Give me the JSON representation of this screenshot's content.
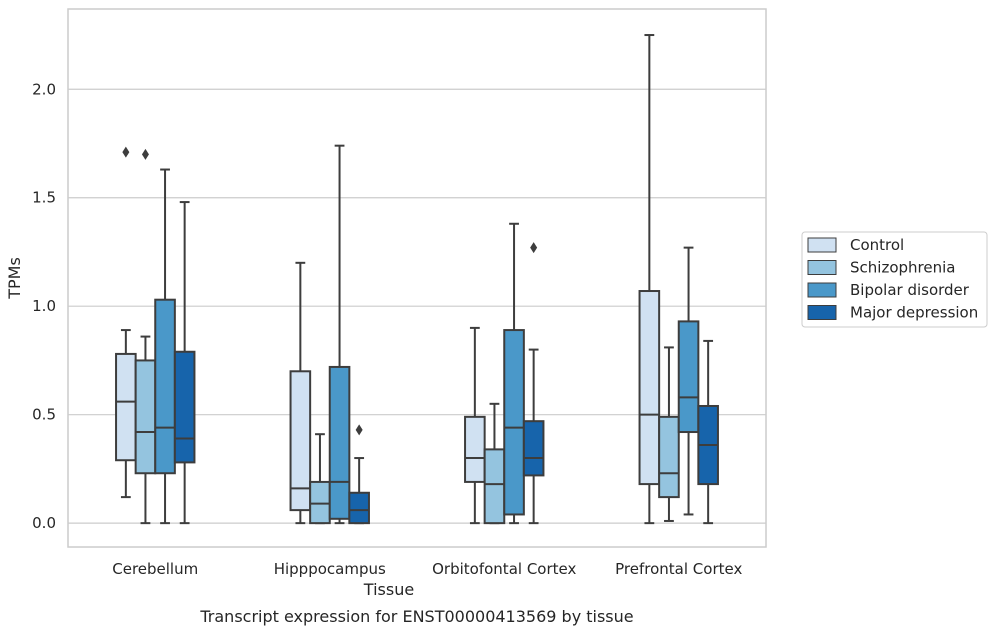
{
  "chart_data": {
    "type": "boxplot",
    "xlabel": "Tissue",
    "ylabel": "TPMs",
    "caption": "Transcript expression for ENST00000413569 by tissue",
    "categories": [
      "Cerebellum",
      "Hipppocampus",
      "Orbitofontal Cortex",
      "Prefrontal Cortex"
    ],
    "ylim": [
      -0.11,
      2.37
    ],
    "yticks": [
      0.0,
      0.5,
      1.0,
      1.5,
      2.0
    ],
    "ytick_labels": [
      "0.0",
      "0.5",
      "1.0",
      "1.5",
      "2.0"
    ],
    "grid": "horizontal",
    "legend_position": "right",
    "series": [
      {
        "name": "Control",
        "color": "#d0e1f2",
        "boxes": [
          {
            "whislo": 0.12,
            "q1": 0.29,
            "med": 0.56,
            "q3": 0.78,
            "whishi": 0.89,
            "fliers": [
              1.71
            ]
          },
          {
            "whislo": 0.0,
            "q1": 0.06,
            "med": 0.16,
            "q3": 0.7,
            "whishi": 1.2,
            "fliers": []
          },
          {
            "whislo": 0.0,
            "q1": 0.19,
            "med": 0.3,
            "q3": 0.49,
            "whishi": 0.9,
            "fliers": []
          },
          {
            "whislo": 0.0,
            "q1": 0.18,
            "med": 0.5,
            "q3": 1.07,
            "whishi": 2.25,
            "fliers": []
          }
        ]
      },
      {
        "name": "Schizophrenia",
        "color": "#94c4df",
        "boxes": [
          {
            "whislo": 0.0,
            "q1": 0.23,
            "med": 0.42,
            "q3": 0.75,
            "whishi": 0.86,
            "fliers": [
              1.7
            ]
          },
          {
            "whislo": 0.0,
            "q1": 0.0,
            "med": 0.09,
            "q3": 0.19,
            "whishi": 0.41,
            "fliers": []
          },
          {
            "whislo": 0.0,
            "q1": 0.0,
            "med": 0.18,
            "q3": 0.34,
            "whishi": 0.55,
            "fliers": []
          },
          {
            "whislo": 0.01,
            "q1": 0.12,
            "med": 0.23,
            "q3": 0.49,
            "whishi": 0.81,
            "fliers": []
          }
        ]
      },
      {
        "name": "Bipolar disorder",
        "color": "#4a98c9",
        "boxes": [
          {
            "whislo": 0.0,
            "q1": 0.23,
            "med": 0.44,
            "q3": 1.03,
            "whishi": 1.63,
            "fliers": []
          },
          {
            "whislo": 0.0,
            "q1": 0.02,
            "med": 0.19,
            "q3": 0.72,
            "whishi": 1.74,
            "fliers": []
          },
          {
            "whislo": 0.0,
            "q1": 0.04,
            "med": 0.44,
            "q3": 0.89,
            "whishi": 1.38,
            "fliers": []
          },
          {
            "whislo": 0.04,
            "q1": 0.42,
            "med": 0.58,
            "q3": 0.93,
            "whishi": 1.27,
            "fliers": []
          }
        ]
      },
      {
        "name": "Major depression",
        "color": "#1764ab",
        "boxes": [
          {
            "whislo": 0.0,
            "q1": 0.28,
            "med": 0.39,
            "q3": 0.79,
            "whishi": 1.48,
            "fliers": []
          },
          {
            "whislo": 0.0,
            "q1": 0.0,
            "med": 0.06,
            "q3": 0.14,
            "whishi": 0.3,
            "fliers": [
              0.43
            ]
          },
          {
            "whislo": 0.0,
            "q1": 0.22,
            "med": 0.3,
            "q3": 0.47,
            "whishi": 0.8,
            "fliers": [
              1.27
            ]
          },
          {
            "whislo": 0.0,
            "q1": 0.18,
            "med": 0.36,
            "q3": 0.54,
            "whishi": 0.84,
            "fliers": []
          }
        ]
      }
    ]
  }
}
